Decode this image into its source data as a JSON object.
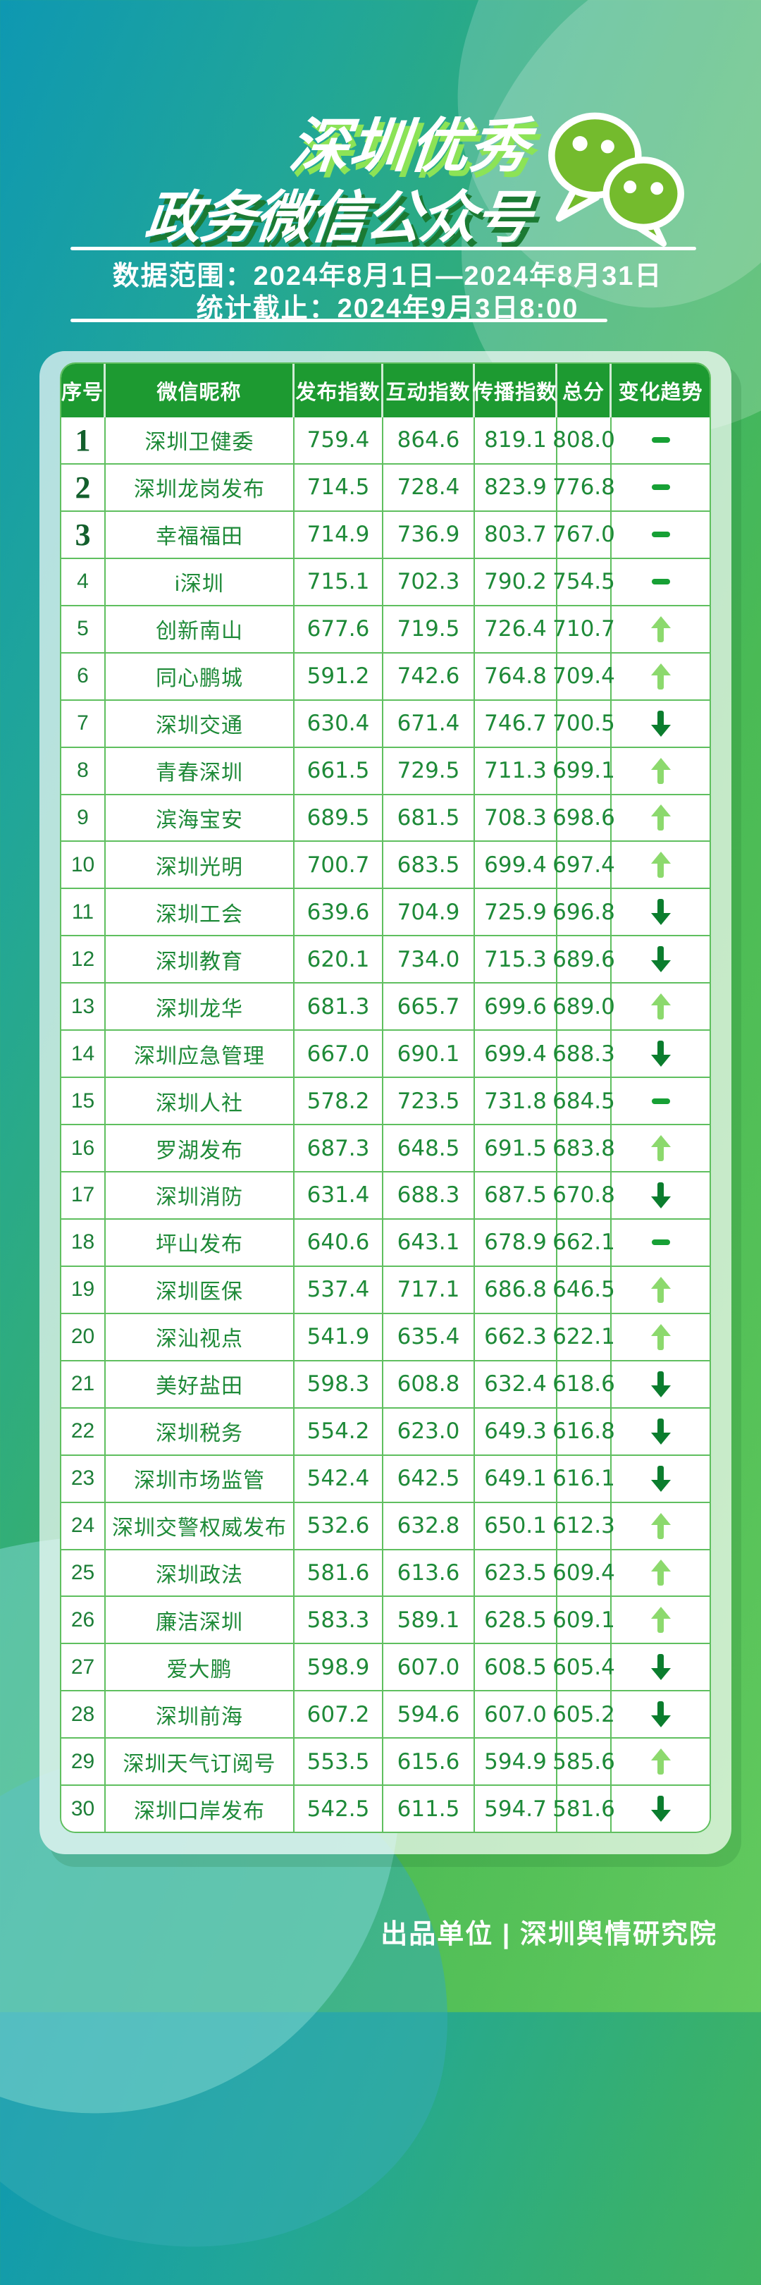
{
  "header": {
    "title_line1": "深圳优秀",
    "title_line2": "政务微信公众号",
    "data_range": "数据范围：2024年8月1日—2024年8月31日",
    "stats_deadline": "统计截止：2024年9月3日8:00"
  },
  "footer": {
    "credit": "出品单位 | 深圳舆情研究院"
  },
  "colors": {
    "background_teal": "#0e98b2",
    "background_green": "#52be57",
    "header_green": "#1d9a31",
    "grid_green": "#5fbf5f",
    "text_green": "#1e8a38",
    "up_arrow": "#8cd96d",
    "down_arrow": "#0b7d2e",
    "dash": "#17a035",
    "wechat_green": "#74bb2d",
    "title_shadow_lime": "#8ce356",
    "title_shadow_dark": "#1b7a33"
  },
  "icons": {
    "wechat": "wechat-bubbles-icon",
    "trend_up": "up-arrow-icon",
    "trend_down": "down-arrow-icon",
    "trend_flat": "dash-icon"
  },
  "chart_data": {
    "type": "table",
    "title": "深圳优秀政务微信公众号",
    "columns": [
      "序号",
      "微信昵称",
      "发布指数",
      "互动指数",
      "传播指数",
      "总分",
      "变化趋势"
    ],
    "rows": [
      {
        "rank": "1",
        "name": "深圳卫健委",
        "publish": "759.4",
        "interact": "864.6",
        "spread": "819.1",
        "total": "808.0",
        "trend": "flat"
      },
      {
        "rank": "2",
        "name": "深圳龙岗发布",
        "publish": "714.5",
        "interact": "728.4",
        "spread": "823.9",
        "total": "776.8",
        "trend": "flat"
      },
      {
        "rank": "3",
        "name": "幸福福田",
        "publish": "714.9",
        "interact": "736.9",
        "spread": "803.7",
        "total": "767.0",
        "trend": "flat"
      },
      {
        "rank": "4",
        "name": "i深圳",
        "publish": "715.1",
        "interact": "702.3",
        "spread": "790.2",
        "total": "754.5",
        "trend": "flat"
      },
      {
        "rank": "5",
        "name": "创新南山",
        "publish": "677.6",
        "interact": "719.5",
        "spread": "726.4",
        "total": "710.7",
        "trend": "up"
      },
      {
        "rank": "6",
        "name": "同心鹏城",
        "publish": "591.2",
        "interact": "742.6",
        "spread": "764.8",
        "total": "709.4",
        "trend": "up"
      },
      {
        "rank": "7",
        "name": "深圳交通",
        "publish": "630.4",
        "interact": "671.4",
        "spread": "746.7",
        "total": "700.5",
        "trend": "down"
      },
      {
        "rank": "8",
        "name": "青春深圳",
        "publish": "661.5",
        "interact": "729.5",
        "spread": "711.3",
        "total": "699.1",
        "trend": "up"
      },
      {
        "rank": "9",
        "name": "滨海宝安",
        "publish": "689.5",
        "interact": "681.5",
        "spread": "708.3",
        "total": "698.6",
        "trend": "up"
      },
      {
        "rank": "10",
        "name": "深圳光明",
        "publish": "700.7",
        "interact": "683.5",
        "spread": "699.4",
        "total": "697.4",
        "trend": "up"
      },
      {
        "rank": "11",
        "name": "深圳工会",
        "publish": "639.6",
        "interact": "704.9",
        "spread": "725.9",
        "total": "696.8",
        "trend": "down"
      },
      {
        "rank": "12",
        "name": "深圳教育",
        "publish": "620.1",
        "interact": "734.0",
        "spread": "715.3",
        "total": "689.6",
        "trend": "down"
      },
      {
        "rank": "13",
        "name": "深圳龙华",
        "publish": "681.3",
        "interact": "665.7",
        "spread": "699.6",
        "total": "689.0",
        "trend": "up"
      },
      {
        "rank": "14",
        "name": "深圳应急管理",
        "publish": "667.0",
        "interact": "690.1",
        "spread": "699.4",
        "total": "688.3",
        "trend": "down"
      },
      {
        "rank": "15",
        "name": "深圳人社",
        "publish": "578.2",
        "interact": "723.5",
        "spread": "731.8",
        "total": "684.5",
        "trend": "flat"
      },
      {
        "rank": "16",
        "name": "罗湖发布",
        "publish": "687.3",
        "interact": "648.5",
        "spread": "691.5",
        "total": "683.8",
        "trend": "up"
      },
      {
        "rank": "17",
        "name": "深圳消防",
        "publish": "631.4",
        "interact": "688.3",
        "spread": "687.5",
        "total": "670.8",
        "trend": "down"
      },
      {
        "rank": "18",
        "name": "坪山发布",
        "publish": "640.6",
        "interact": "643.1",
        "spread": "678.9",
        "total": "662.1",
        "trend": "flat"
      },
      {
        "rank": "19",
        "name": "深圳医保",
        "publish": "537.4",
        "interact": "717.1",
        "spread": "686.8",
        "total": "646.5",
        "trend": "up"
      },
      {
        "rank": "20",
        "name": "深汕视点",
        "publish": "541.9",
        "interact": "635.4",
        "spread": "662.3",
        "total": "622.1",
        "trend": "up"
      },
      {
        "rank": "21",
        "name": "美好盐田",
        "publish": "598.3",
        "interact": "608.8",
        "spread": "632.4",
        "total": "618.6",
        "trend": "down"
      },
      {
        "rank": "22",
        "name": "深圳税务",
        "publish": "554.2",
        "interact": "623.0",
        "spread": "649.3",
        "total": "616.8",
        "trend": "down"
      },
      {
        "rank": "23",
        "name": "深圳市场监管",
        "publish": "542.4",
        "interact": "642.5",
        "spread": "649.1",
        "total": "616.1",
        "trend": "down"
      },
      {
        "rank": "24",
        "name": "深圳交警权威发布",
        "publish": "532.6",
        "interact": "632.8",
        "spread": "650.1",
        "total": "612.3",
        "trend": "up"
      },
      {
        "rank": "25",
        "name": "深圳政法",
        "publish": "581.6",
        "interact": "613.6",
        "spread": "623.5",
        "total": "609.4",
        "trend": "up"
      },
      {
        "rank": "26",
        "name": "廉洁深圳",
        "publish": "583.3",
        "interact": "589.1",
        "spread": "628.5",
        "total": "609.1",
        "trend": "up"
      },
      {
        "rank": "27",
        "name": "爱大鹏",
        "publish": "598.9",
        "interact": "607.0",
        "spread": "608.5",
        "total": "605.4",
        "trend": "down"
      },
      {
        "rank": "28",
        "name": "深圳前海",
        "publish": "607.2",
        "interact": "594.6",
        "spread": "607.0",
        "total": "605.2",
        "trend": "down"
      },
      {
        "rank": "29",
        "name": "深圳天气订阅号",
        "publish": "553.5",
        "interact": "615.6",
        "spread": "594.9",
        "total": "585.6",
        "trend": "up"
      },
      {
        "rank": "30",
        "name": "深圳口岸发布",
        "publish": "542.5",
        "interact": "611.5",
        "spread": "594.7",
        "total": "581.6",
        "trend": "down"
      }
    ]
  }
}
